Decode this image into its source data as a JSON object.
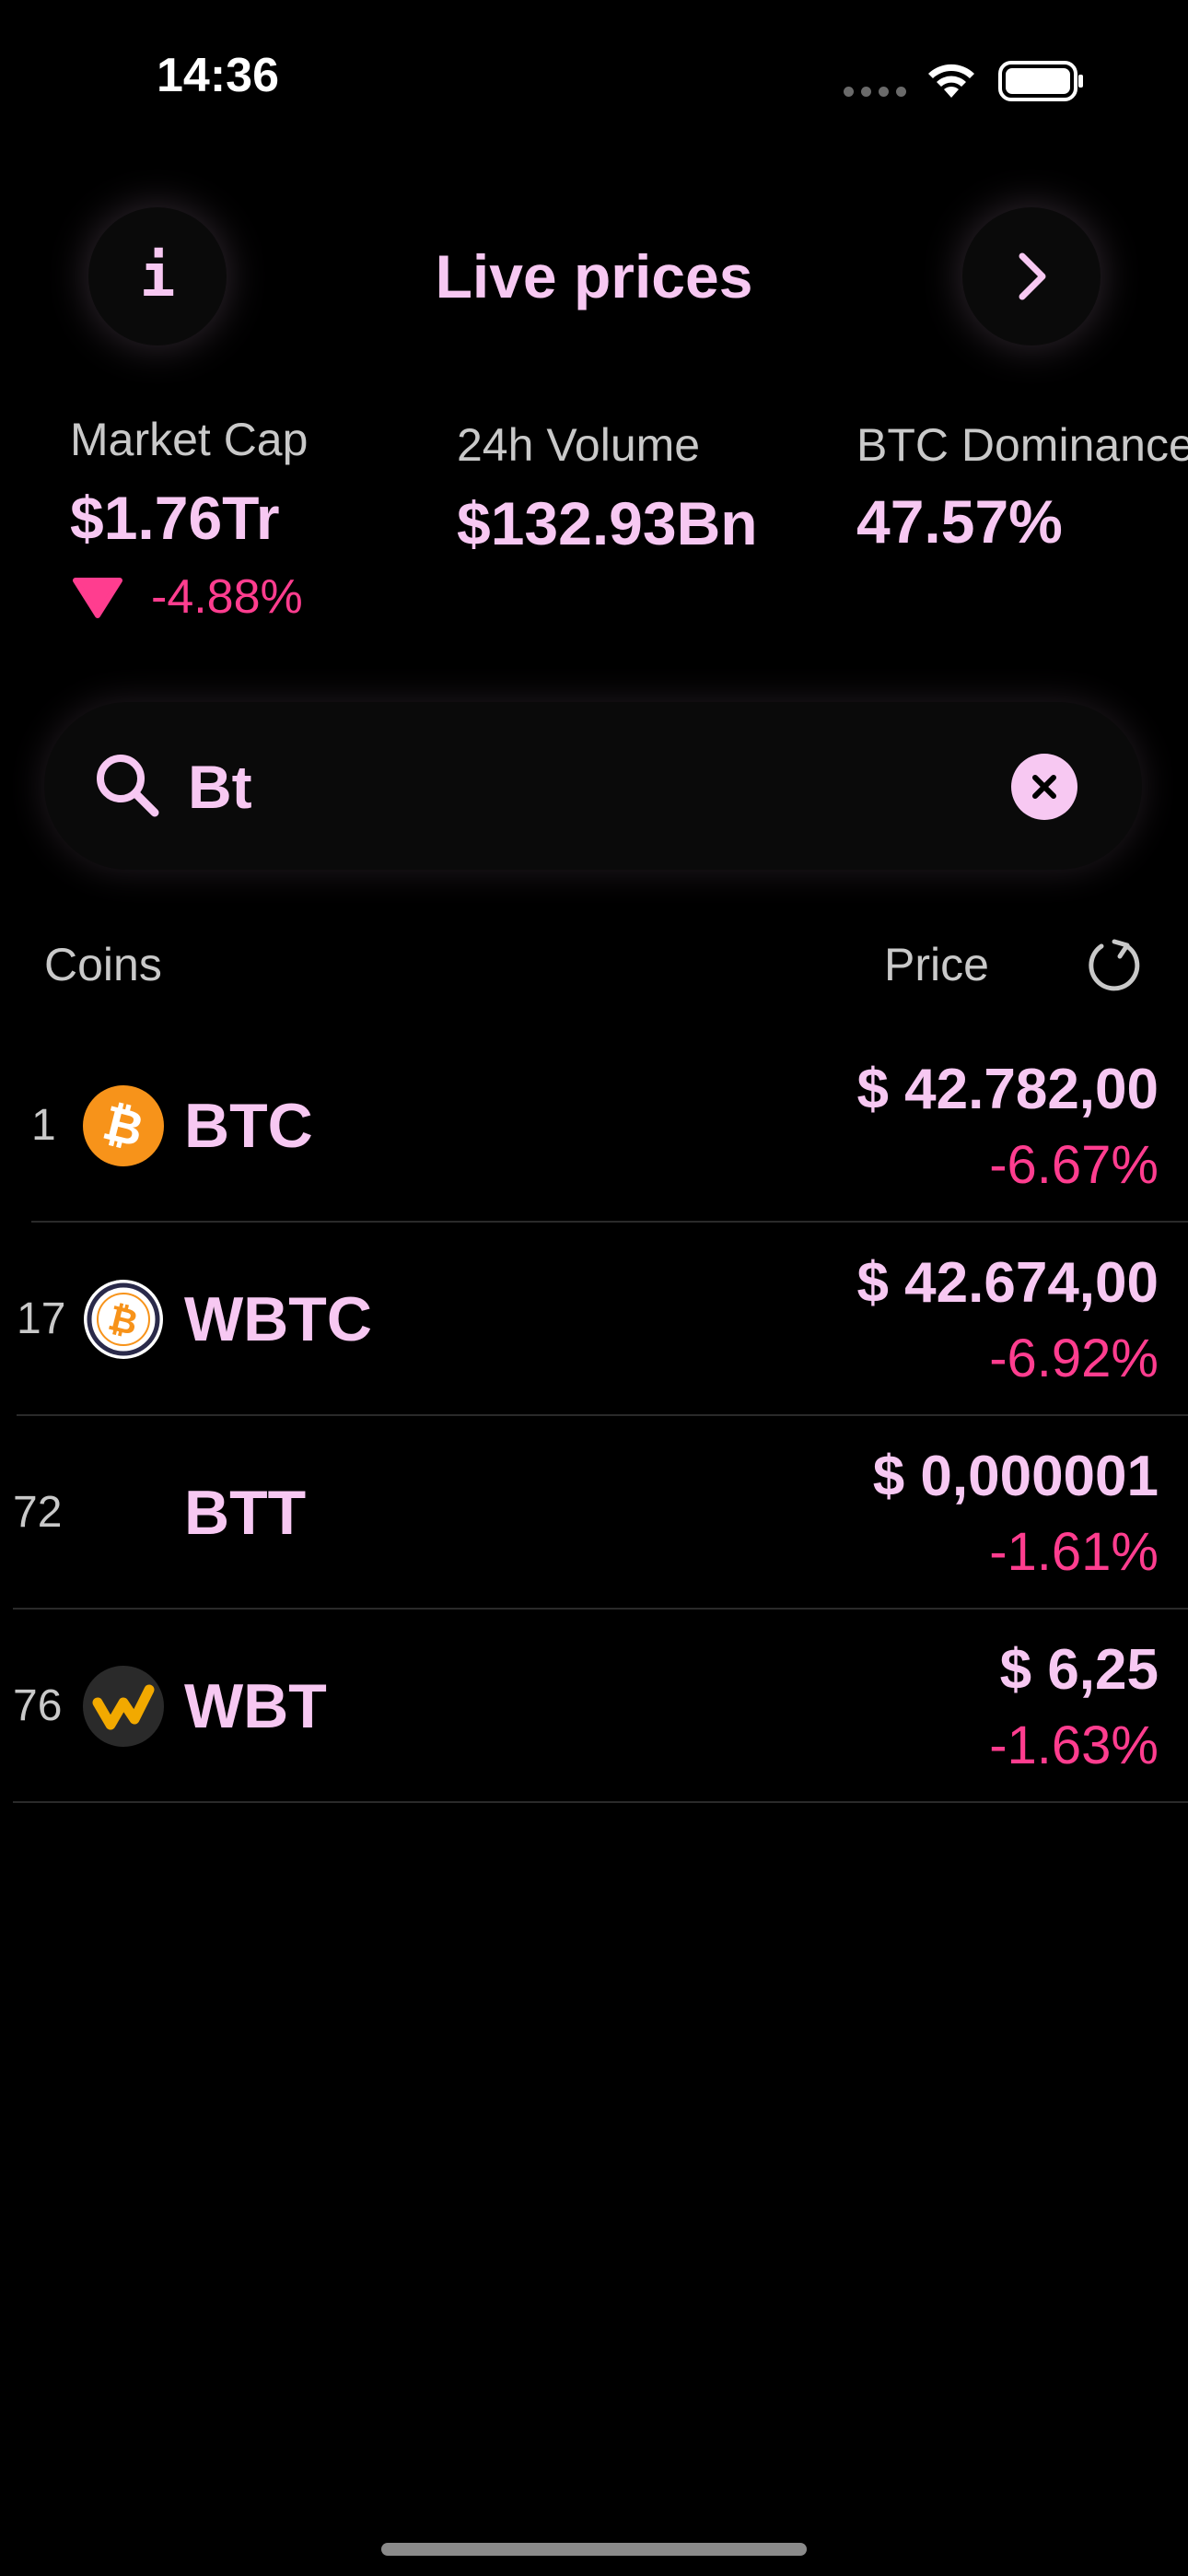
{
  "status_bar": {
    "time": "14:36"
  },
  "header": {
    "title": "Live prices"
  },
  "stats": {
    "market_cap": {
      "label": "Market Cap",
      "value": "$1.76Tr",
      "change": "-4.88%"
    },
    "volume": {
      "label": "24h Volume",
      "value": "$132.93Bn"
    },
    "dominance": {
      "label": "BTC Dominance",
      "value": "47.57%"
    }
  },
  "search": {
    "value": "Bt",
    "placeholder": ""
  },
  "columns": {
    "coins": "Coins",
    "price": "Price"
  },
  "coins": [
    {
      "rank": "1",
      "symbol": "BTC",
      "price": "$ 42.782,00",
      "change": "-6.67%",
      "logo": "bitcoin-icon"
    },
    {
      "rank": "17",
      "symbol": "WBTC",
      "price": "$ 42.674,00",
      "change": "-6.92%",
      "logo": "wrapped-bitcoin-icon"
    },
    {
      "rank": "72",
      "symbol": "BTT",
      "price": "$ 0,000001",
      "change": "-1.61%",
      "logo": ""
    },
    {
      "rank": "76",
      "symbol": "WBT",
      "price": "$ 6,25",
      "change": "-1.63%",
      "logo": "whitebit-icon"
    }
  ],
  "colors": {
    "accent": "#f7c8f2",
    "negative": "#ff3d8f",
    "background": "#000000",
    "bitcoin": "#f7931a",
    "whitebit": "#f2a900"
  }
}
